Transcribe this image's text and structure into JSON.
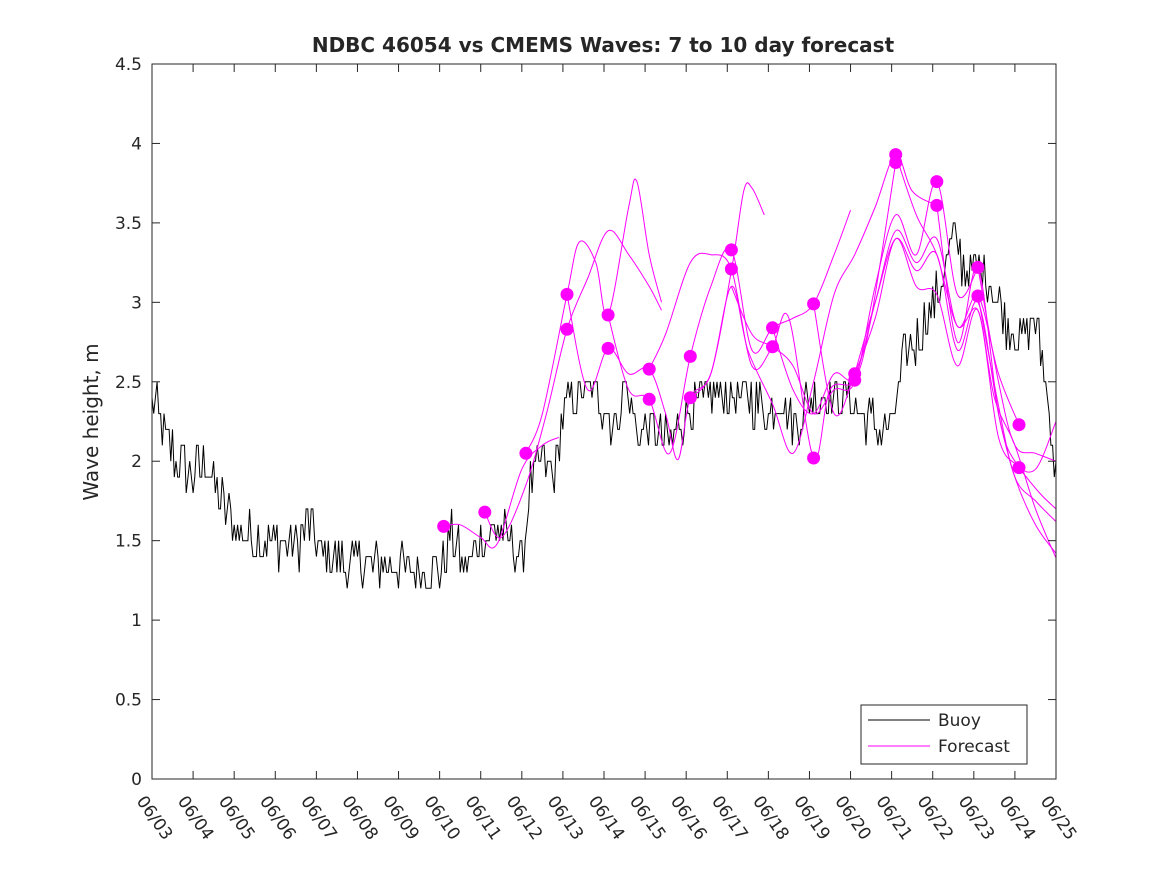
{
  "chart_data": {
    "type": "line",
    "title": "NDBC 46054 vs CMEMS Waves: 7 to 10 day forecast",
    "xlabel": "",
    "ylabel": "Wave height, m",
    "xlim": [
      "06/03",
      "06/25"
    ],
    "ylim": [
      0,
      4.5
    ],
    "x_tick_labels": [
      "06/03",
      "06/04",
      "06/05",
      "06/06",
      "06/07",
      "06/08",
      "06/09",
      "06/10",
      "06/11",
      "06/12",
      "06/13",
      "06/14",
      "06/15",
      "06/16",
      "06/17",
      "06/18",
      "06/19",
      "06/20",
      "06/21",
      "06/22",
      "06/23",
      "06/24",
      "06/25"
    ],
    "y_ticks": [
      0,
      0.5,
      1,
      1.5,
      2,
      2.5,
      3,
      3.5,
      4,
      4.5
    ],
    "y_tick_labels": [
      "0",
      "0.5",
      "1",
      "1.5",
      "2",
      "2.5",
      "3",
      "3.5",
      "4",
      "4.5"
    ],
    "grid": false,
    "legend_position": "bottom-right",
    "legend": [
      {
        "label": "Buoy",
        "color": "#000000"
      },
      {
        "label": "Forecast",
        "color": "#ff00ff"
      }
    ],
    "colors": {
      "buoy": "#000000",
      "forecast": "#ff00ff",
      "axes": "#262626"
    },
    "buoy": {
      "name": "Buoy",
      "anchors": [
        [
          0.0,
          2.4
        ],
        [
          0.3,
          2.2
        ],
        [
          0.6,
          2.0
        ],
        [
          1.0,
          1.9
        ],
        [
          1.3,
          2.0
        ],
        [
          1.6,
          1.8
        ],
        [
          2.0,
          1.6
        ],
        [
          2.5,
          1.5
        ],
        [
          3.0,
          1.5
        ],
        [
          3.5,
          1.45
        ],
        [
          3.8,
          1.6
        ],
        [
          4.2,
          1.4
        ],
        [
          5.0,
          1.35
        ],
        [
          6.0,
          1.35
        ],
        [
          6.5,
          1.3
        ],
        [
          7.0,
          1.3
        ],
        [
          7.3,
          1.55
        ],
        [
          7.6,
          1.3
        ],
        [
          8.0,
          1.5
        ],
        [
          8.3,
          1.6
        ],
        [
          8.7,
          1.5
        ],
        [
          9.0,
          1.35
        ],
        [
          9.2,
          1.85
        ],
        [
          9.5,
          2.0
        ],
        [
          9.8,
          1.9
        ],
        [
          10.0,
          2.3
        ],
        [
          10.3,
          2.4
        ],
        [
          10.7,
          2.45
        ],
        [
          11.0,
          2.35
        ],
        [
          11.3,
          2.2
        ],
        [
          11.5,
          2.5
        ],
        [
          11.8,
          2.2
        ],
        [
          12.2,
          2.2
        ],
        [
          12.6,
          2.1
        ],
        [
          13.0,
          2.3
        ],
        [
          13.5,
          2.4
        ],
        [
          14.0,
          2.4
        ],
        [
          14.5,
          2.4
        ],
        [
          15.0,
          2.3
        ],
        [
          15.3,
          2.4
        ],
        [
          15.6,
          2.2
        ],
        [
          16.0,
          2.4
        ],
        [
          16.5,
          2.4
        ],
        [
          17.0,
          2.4
        ],
        [
          17.3,
          2.3
        ],
        [
          17.7,
          2.2
        ],
        [
          18.0,
          2.2
        ],
        [
          18.3,
          2.65
        ],
        [
          18.7,
          2.8
        ],
        [
          19.0,
          3.0
        ],
        [
          19.3,
          3.2
        ],
        [
          19.5,
          3.4
        ],
        [
          19.8,
          3.2
        ],
        [
          20.2,
          3.2
        ],
        [
          20.6,
          3.0
        ],
        [
          20.9,
          2.8
        ],
        [
          21.2,
          2.8
        ],
        [
          21.5,
          2.9
        ],
        [
          21.8,
          2.4
        ],
        [
          22.0,
          1.9
        ]
      ],
      "noise_amplitude": 0.15
    },
    "forecasts": [
      {
        "points": [
          [
            7.1,
            1.59
          ],
          [
            7.5,
            1.6
          ],
          [
            8.0,
            1.52
          ],
          [
            8.4,
            1.48
          ],
          [
            9.0,
            1.95
          ],
          [
            9.5,
            2.1
          ],
          [
            9.9,
            2.15
          ]
        ]
      },
      {
        "points": [
          [
            8.1,
            1.68
          ],
          [
            8.5,
            1.52
          ],
          [
            9.1,
            1.85
          ],
          [
            9.6,
            2.3
          ],
          [
            10.1,
            2.83
          ],
          [
            10.6,
            3.15
          ],
          [
            11.1,
            3.45
          ],
          [
            11.6,
            3.3
          ],
          [
            12.1,
            3.1
          ],
          [
            12.4,
            2.95
          ]
        ]
      },
      {
        "points": [
          [
            9.1,
            2.05
          ],
          [
            9.5,
            2.3
          ],
          [
            10.1,
            3.05
          ],
          [
            10.4,
            3.38
          ],
          [
            10.8,
            3.25
          ],
          [
            11.1,
            2.92
          ],
          [
            11.6,
            3.6
          ],
          [
            11.8,
            3.76
          ],
          [
            12.1,
            3.3
          ],
          [
            12.4,
            3.0
          ]
        ]
      },
      {
        "points": [
          [
            10.1,
            3.05
          ],
          [
            10.6,
            2.45
          ],
          [
            11.1,
            2.71
          ],
          [
            11.6,
            2.55
          ],
          [
            12.1,
            2.58
          ],
          [
            12.5,
            2.3
          ],
          [
            12.8,
            2.01
          ],
          [
            13.1,
            2.4
          ],
          [
            13.6,
            2.55
          ],
          [
            14.1,
            3.2
          ],
          [
            14.4,
            3.7
          ],
          [
            14.6,
            3.72
          ],
          [
            14.9,
            3.55
          ]
        ]
      },
      {
        "points": [
          [
            11.1,
            2.92
          ],
          [
            11.6,
            2.45
          ],
          [
            12.1,
            2.39
          ],
          [
            12.6,
            2.05
          ],
          [
            13.1,
            2.66
          ],
          [
            13.6,
            3.1
          ],
          [
            14.1,
            3.33
          ],
          [
            14.6,
            2.7
          ],
          [
            15.1,
            2.84
          ],
          [
            15.6,
            2.9
          ],
          [
            16.1,
            2.99
          ],
          [
            16.6,
            3.3
          ],
          [
            17.0,
            3.58
          ]
        ]
      },
      {
        "points": [
          [
            12.1,
            2.58
          ],
          [
            12.5,
            2.8
          ],
          [
            13.1,
            3.25
          ],
          [
            13.6,
            3.3
          ],
          [
            14.1,
            3.21
          ],
          [
            14.6,
            2.6
          ],
          [
            15.1,
            2.72
          ],
          [
            15.5,
            2.9
          ],
          [
            16.1,
            2.02
          ],
          [
            16.5,
            2.45
          ],
          [
            17.1,
            2.51
          ],
          [
            17.5,
            2.9
          ],
          [
            18.1,
            3.88
          ]
        ]
      },
      {
        "points": [
          [
            13.1,
            2.4
          ],
          [
            13.6,
            2.55
          ],
          [
            14.1,
            3.1
          ],
          [
            14.5,
            2.7
          ],
          [
            15.1,
            2.36
          ],
          [
            15.6,
            2.05
          ],
          [
            16.1,
            2.5
          ],
          [
            16.6,
            3.05
          ],
          [
            17.1,
            3.3
          ],
          [
            17.6,
            3.6
          ],
          [
            18.1,
            3.93
          ],
          [
            18.5,
            3.7
          ],
          [
            19.1,
            3.61
          ]
        ]
      },
      {
        "points": [
          [
            14.1,
            3.1
          ],
          [
            14.6,
            2.8
          ],
          [
            15.1,
            2.72
          ],
          [
            15.6,
            2.6
          ],
          [
            16.1,
            2.3
          ],
          [
            16.6,
            2.45
          ],
          [
            17.1,
            2.5
          ],
          [
            17.6,
            3.1
          ],
          [
            18.1,
            3.55
          ],
          [
            18.6,
            3.3
          ],
          [
            19.1,
            3.76
          ],
          [
            19.6,
            3.05
          ],
          [
            20.1,
            3.22
          ]
        ]
      },
      {
        "points": [
          [
            15.1,
            2.84
          ],
          [
            15.6,
            2.45
          ],
          [
            16.1,
            2.3
          ],
          [
            16.6,
            2.55
          ],
          [
            17.1,
            2.53
          ],
          [
            17.6,
            3.0
          ],
          [
            18.1,
            3.45
          ],
          [
            18.6,
            3.25
          ],
          [
            19.1,
            3.4
          ],
          [
            19.6,
            2.85
          ],
          [
            20.1,
            3.04
          ],
          [
            20.6,
            2.55
          ],
          [
            21.1,
            2.23
          ]
        ]
      },
      {
        "points": [
          [
            16.1,
            2.99
          ],
          [
            16.6,
            2.3
          ],
          [
            17.1,
            2.55
          ],
          [
            17.6,
            2.9
          ],
          [
            18.1,
            3.4
          ],
          [
            18.6,
            3.1
          ],
          [
            19.1,
            3.05
          ],
          [
            19.6,
            2.6
          ],
          [
            20.1,
            2.95
          ],
          [
            20.6,
            2.15
          ],
          [
            21.1,
            1.96
          ],
          [
            21.6,
            1.8
          ],
          [
            22.0,
            1.7
          ]
        ]
      },
      {
        "points": [
          [
            17.1,
            2.55
          ],
          [
            17.6,
            3.0
          ],
          [
            18.1,
            3.4
          ],
          [
            18.6,
            3.2
          ],
          [
            19.1,
            3.3
          ],
          [
            19.6,
            2.7
          ],
          [
            20.1,
            3.0
          ],
          [
            20.6,
            2.3
          ],
          [
            21.0,
            1.9
          ],
          [
            21.5,
            1.6
          ],
          [
            22.0,
            1.42
          ]
        ]
      },
      {
        "points": [
          [
            18.1,
            3.93
          ],
          [
            18.6,
            3.55
          ],
          [
            19.1,
            3.3
          ],
          [
            19.6,
            2.85
          ],
          [
            20.1,
            2.95
          ],
          [
            20.5,
            2.4
          ],
          [
            21.0,
            2.1
          ],
          [
            21.5,
            1.7
          ],
          [
            22.0,
            1.39
          ]
        ]
      },
      {
        "points": [
          [
            19.1,
            3.61
          ],
          [
            19.6,
            2.75
          ],
          [
            20.1,
            3.22
          ],
          [
            20.6,
            2.3
          ],
          [
            21.0,
            2.0
          ],
          [
            21.5,
            1.95
          ],
          [
            22.0,
            2.25
          ]
        ]
      },
      {
        "points": [
          [
            20.1,
            3.22
          ],
          [
            20.6,
            2.5
          ],
          [
            21.0,
            2.1
          ],
          [
            21.5,
            2.05
          ],
          [
            22.0,
            2.0
          ]
        ]
      },
      {
        "points": [
          [
            20.1,
            3.04
          ],
          [
            20.6,
            2.35
          ],
          [
            21.0,
            1.9
          ],
          [
            21.5,
            1.75
          ],
          [
            22.0,
            1.62
          ]
        ]
      }
    ],
    "forecast_markers": [
      [
        7.1,
        1.59
      ],
      [
        8.1,
        1.68
      ],
      [
        9.1,
        2.05
      ],
      [
        10.1,
        3.05
      ],
      [
        10.1,
        2.83
      ],
      [
        11.1,
        2.92
      ],
      [
        11.1,
        2.71
      ],
      [
        12.1,
        2.58
      ],
      [
        12.1,
        2.39
      ],
      [
        13.1,
        2.66
      ],
      [
        13.1,
        2.4
      ],
      [
        14.1,
        3.33
      ],
      [
        14.1,
        3.21
      ],
      [
        15.1,
        2.84
      ],
      [
        15.1,
        2.72
      ],
      [
        16.1,
        2.99
      ],
      [
        16.1,
        2.02
      ],
      [
        17.1,
        2.55
      ],
      [
        17.1,
        2.51
      ],
      [
        18.1,
        3.93
      ],
      [
        18.1,
        3.88
      ],
      [
        19.1,
        3.76
      ],
      [
        19.1,
        3.61
      ],
      [
        20.1,
        3.22
      ],
      [
        20.1,
        3.04
      ],
      [
        21.1,
        2.23
      ],
      [
        21.1,
        1.96
      ]
    ]
  }
}
